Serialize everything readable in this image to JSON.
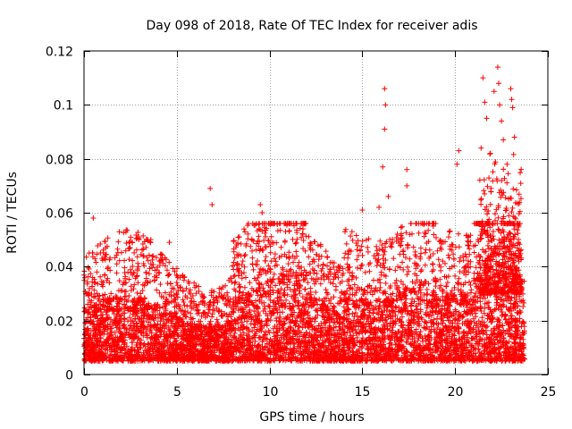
{
  "chart_data": {
    "type": "scatter",
    "title": "Day 098 of 2018, Rate Of TEC Index for receiver adis",
    "xlabel": "GPS time / hours",
    "ylabel": "ROTI / TECUs",
    "xlim": [
      0,
      25
    ],
    "ylim": [
      0,
      0.12
    ],
    "xticks": [
      0,
      5,
      10,
      15,
      20,
      25
    ],
    "yticks": [
      0,
      0.02,
      0.04,
      0.06,
      0.08,
      0.1,
      0.12
    ],
    "xtick_labels": [
      "0",
      "5",
      "10",
      "15",
      "20",
      "25"
    ],
    "ytick_labels": [
      "0",
      "0.02",
      "0.04",
      "0.06",
      "0.08",
      "0.1",
      "0.12"
    ],
    "grid": true,
    "marker": "+",
    "color": "#ff0000",
    "series": [
      {
        "name": "ROTI",
        "x_range": [
          0,
          23.75
        ],
        "typical_band": [
          0.005,
          0.03
        ],
        "notable_points": [
          {
            "x": 0.5,
            "y": 0.058
          },
          {
            "x": 3.6,
            "y": 0.05
          },
          {
            "x": 4.6,
            "y": 0.049
          },
          {
            "x": 6.8,
            "y": 0.069
          },
          {
            "x": 6.9,
            "y": 0.063
          },
          {
            "x": 9.5,
            "y": 0.063
          },
          {
            "x": 9.6,
            "y": 0.06
          },
          {
            "x": 15.0,
            "y": 0.061
          },
          {
            "x": 15.9,
            "y": 0.062
          },
          {
            "x": 16.2,
            "y": 0.106
          },
          {
            "x": 16.25,
            "y": 0.1
          },
          {
            "x": 16.2,
            "y": 0.091
          },
          {
            "x": 16.1,
            "y": 0.077
          },
          {
            "x": 16.4,
            "y": 0.066
          },
          {
            "x": 17.4,
            "y": 0.076
          },
          {
            "x": 17.4,
            "y": 0.07
          },
          {
            "x": 20.2,
            "y": 0.083
          },
          {
            "x": 20.1,
            "y": 0.078
          },
          {
            "x": 21.5,
            "y": 0.11
          },
          {
            "x": 21.6,
            "y": 0.101
          },
          {
            "x": 21.7,
            "y": 0.095
          },
          {
            "x": 22.1,
            "y": 0.105
          },
          {
            "x": 22.3,
            "y": 0.114
          },
          {
            "x": 22.35,
            "y": 0.108
          },
          {
            "x": 22.4,
            "y": 0.1
          },
          {
            "x": 22.5,
            "y": 0.094
          },
          {
            "x": 22.6,
            "y": 0.087
          },
          {
            "x": 22.8,
            "y": 0.078
          },
          {
            "x": 23.0,
            "y": 0.106
          },
          {
            "x": 23.05,
            "y": 0.102
          },
          {
            "x": 23.1,
            "y": 0.099
          },
          {
            "x": 23.2,
            "y": 0.088
          },
          {
            "x": 21.4,
            "y": 0.084
          },
          {
            "x": 21.9,
            "y": 0.082
          }
        ]
      }
    ]
  }
}
